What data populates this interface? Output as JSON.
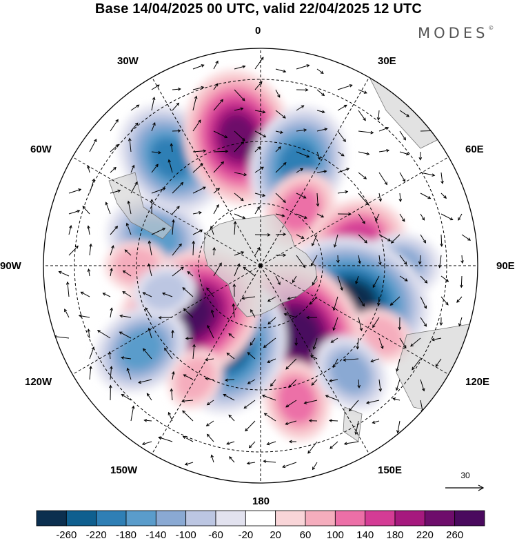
{
  "title": "Base 14/04/2025 00 UTC, valid 22/04/2025 12 UTC",
  "brand": "MODES",
  "brand_mark": "©",
  "longitude_labels": {
    "lon_0": "0",
    "lon_30e": "30E",
    "lon_60e": "60E",
    "lon_90e": "90E",
    "lon_120e": "120E",
    "lon_150e": "150E",
    "lon_180": "180",
    "lon_150w": "150W",
    "lon_120w": "120W",
    "lon_90w": "90W",
    "lon_60w": "60W",
    "lon_30w": "30W"
  },
  "reference_vector": {
    "value": "30"
  },
  "colorbar": {
    "ticks": [
      "-260",
      "-220",
      "-180",
      "-140",
      "-100",
      "-60",
      "-20",
      "20",
      "60",
      "100",
      "140",
      "180",
      "220",
      "260"
    ],
    "colors": [
      "#0b2f4f",
      "#0f5f8f",
      "#2f7fb5",
      "#5a9ccb",
      "#8aa9d3",
      "#bcc6e2",
      "#e2e2ef",
      "#ffffff",
      "#f9d5d8",
      "#f5adbd",
      "#ec6fa7",
      "#d43c95",
      "#a6197e",
      "#6e0d6b",
      "#4a0a5e"
    ]
  },
  "projection": "south-polar-stereographic",
  "anomaly_centers": [
    {
      "lon": -75,
      "lat": -55,
      "value": -140
    },
    {
      "lon": -40,
      "lat": -45,
      "value": -180
    },
    {
      "lon": -10,
      "lat": -48,
      "value": 220
    },
    {
      "lon": 20,
      "lat": -55,
      "value": -180
    },
    {
      "lon": 35,
      "lat": -68,
      "value": 100
    },
    {
      "lon": 75,
      "lat": -58,
      "value": 140
    },
    {
      "lon": 90,
      "lat": -45,
      "value": -100
    },
    {
      "lon": 110,
      "lat": -58,
      "value": -260
    },
    {
      "lon": 120,
      "lat": -45,
      "value": 60
    },
    {
      "lon": 150,
      "lat": -65,
      "value": 260
    },
    {
      "lon": 165,
      "lat": -45,
      "value": 100
    },
    {
      "lon": -160,
      "lat": -62,
      "value": -220
    },
    {
      "lon": -125,
      "lat": -62,
      "value": 260
    },
    {
      "lon": -125,
      "lat": -43,
      "value": -140
    },
    {
      "lon": -150,
      "lat": -48,
      "value": 60
    },
    {
      "lon": -90,
      "lat": -50,
      "value": 60
    },
    {
      "lon": -105,
      "lat": -58,
      "value": -60
    },
    {
      "lon": 140,
      "lat": -45,
      "value": -100
    }
  ]
}
